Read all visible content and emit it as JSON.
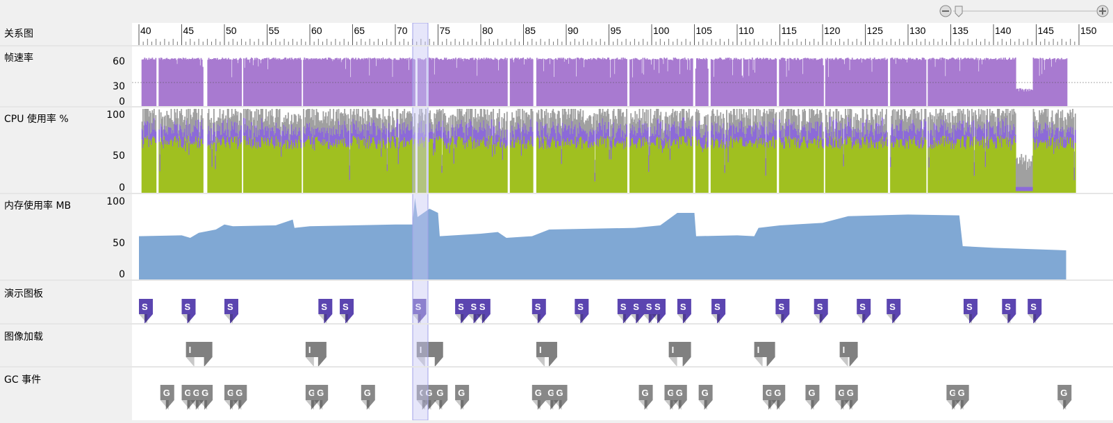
{
  "zoom": {
    "minus_icon": "zoom-out-icon",
    "plus_icon": "zoom-in-icon"
  },
  "ruler": {
    "labels": [
      "40",
      "45",
      "50",
      "55",
      "60",
      "65",
      "70",
      "75",
      "80",
      "85",
      "90",
      "95",
      "100",
      "105",
      "110",
      "115",
      "120",
      "125",
      "130",
      "135",
      "140",
      "145",
      "150"
    ]
  },
  "lanes": {
    "relation": {
      "label": "关系图"
    },
    "framerate": {
      "label": "帧速率",
      "ticks": [
        "60",
        "30",
        "0"
      ]
    },
    "cpu": {
      "label": "CPU 使用率 %",
      "ticks": [
        "100",
        "50",
        "0"
      ]
    },
    "memory": {
      "label": "内存使用率 MB",
      "ticks": [
        "100",
        "50",
        "0"
      ]
    },
    "storyboard": {
      "label": "演示图板",
      "marker": "S"
    },
    "image_load": {
      "label": "图像加载",
      "marker": "I"
    },
    "gc": {
      "label": "GC 事件",
      "marker": "G"
    }
  },
  "colors": {
    "framerate": "#a87ad0",
    "cpu_green": "#a0c020",
    "cpu_purple": "#8c6ad8",
    "cpu_gray": "#a0a0a0",
    "memory": "#80a8d4",
    "storyboard_marker": "#5b45b0",
    "image_marker": "#808080",
    "gc_marker": "#888888",
    "selection": "#c8c8f4"
  }
}
